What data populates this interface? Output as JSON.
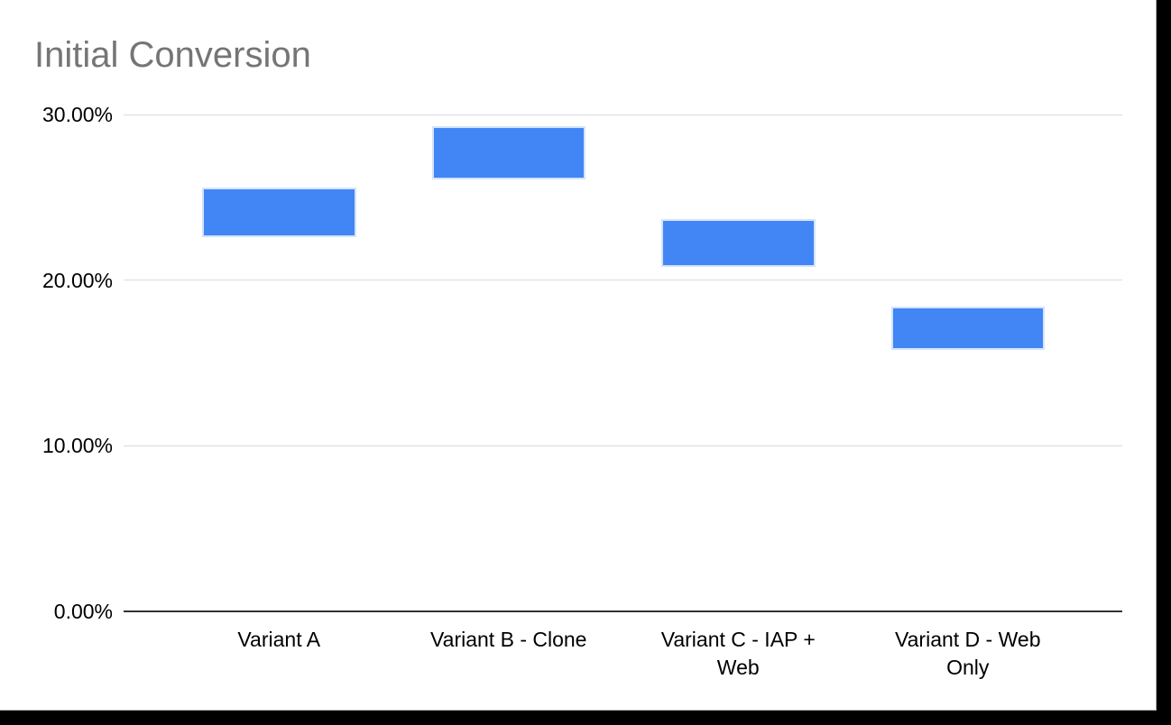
{
  "window": {
    "background_color": "#000000",
    "card_background_color": "#ffffff"
  },
  "chart_data": {
    "type": "candlestick",
    "title": "Initial Conversion",
    "title_color": "#757575",
    "categories": [
      "Variant A",
      "Variant B - Clone",
      "Variant C - IAP + Web",
      "Variant D - Web Only"
    ],
    "series": [
      {
        "name": "Initial Conversion",
        "values": [
          {
            "category": "Variant A",
            "low": 22.6,
            "high": 25.6
          },
          {
            "category": "Variant B - Clone",
            "low": 26.1,
            "high": 29.3
          },
          {
            "category": "Variant C - IAP + Web",
            "low": 20.8,
            "high": 23.7
          },
          {
            "category": "Variant D - Web Only",
            "low": 15.8,
            "high": 18.4
          }
        ]
      }
    ],
    "yaxis": {
      "min": 0,
      "max": 30,
      "tick_interval": 10,
      "ticks": [
        {
          "value": 0,
          "label": "0.00%"
        },
        {
          "value": 10,
          "label": "10.00%"
        },
        {
          "value": 20,
          "label": "20.00%"
        },
        {
          "value": 30,
          "label": "30.00%"
        }
      ],
      "tick_text_color": "#000000"
    },
    "xaxis": {
      "label_color": "#000000"
    },
    "grid": true,
    "gridline_color": "#dadada",
    "zero_axis_color": "#333333",
    "legend_position": "none",
    "bar_color": "#4285f4",
    "bar_border_color": "#d3e3fd"
  }
}
